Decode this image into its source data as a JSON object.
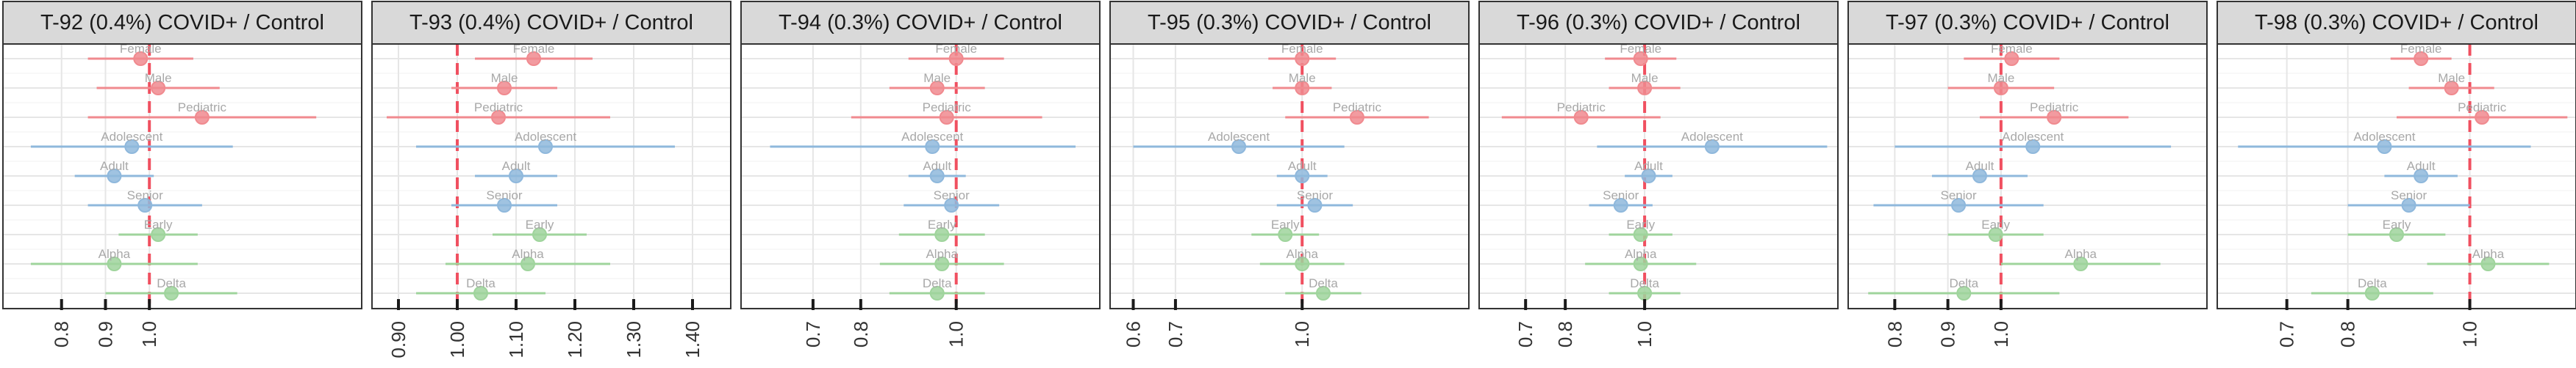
{
  "colors": {
    "sex": "#f08a8f",
    "age": "#8fb8dc",
    "variant": "#9fd49c",
    "reference": "#f05060",
    "strip_fill": "#d9d9d9",
    "grid": "#e6e6e6",
    "point_label": "#a8a8a8",
    "axis_text": "#333333"
  },
  "chart_data": [
    {
      "type": "forest",
      "title": "T-92 (0.4%) COVID+ / Control",
      "ticks": [
        "0.8",
        "0.9",
        "1.0"
      ],
      "tick_values": [
        0.8,
        0.9,
        1.0
      ],
      "xlim": [
        0.7,
        1.45
      ],
      "reference": 1.0,
      "rows": [
        {
          "label": "Female",
          "group": "sex",
          "est": 0.98,
          "lo": 0.86,
          "hi": 1.1
        },
        {
          "label": "Male",
          "group": "sex",
          "est": 1.02,
          "lo": 0.88,
          "hi": 1.16
        },
        {
          "label": "Pediatric",
          "group": "sex",
          "est": 1.12,
          "lo": 0.86,
          "hi": 1.38
        },
        {
          "label": "Adolescent",
          "group": "age",
          "est": 0.96,
          "lo": 0.73,
          "hi": 1.19
        },
        {
          "label": "Adult",
          "group": "age",
          "est": 0.92,
          "lo": 0.83,
          "hi": 1.01
        },
        {
          "label": "Senior",
          "group": "age",
          "est": 0.99,
          "lo": 0.86,
          "hi": 1.12
        },
        {
          "label": "Early",
          "group": "variant",
          "est": 1.02,
          "lo": 0.93,
          "hi": 1.11
        },
        {
          "label": "Alpha",
          "group": "variant",
          "est": 0.92,
          "lo": 0.73,
          "hi": 1.11
        },
        {
          "label": "Delta",
          "group": "variant",
          "est": 1.05,
          "lo": 0.9,
          "hi": 1.2
        }
      ]
    },
    {
      "type": "forest",
      "title": "T-93 (0.4%) COVID+ / Control",
      "ticks": [
        "0.90",
        "1.00",
        "1.10",
        "1.20",
        "1.30",
        "1.40"
      ],
      "tick_values": [
        0.9,
        1.0,
        1.1,
        1.2,
        1.3,
        1.4
      ],
      "xlim": [
        0.88,
        1.44
      ],
      "reference": 1.0,
      "rows": [
        {
          "label": "Female",
          "group": "sex",
          "est": 1.13,
          "lo": 1.03,
          "hi": 1.23
        },
        {
          "label": "Male",
          "group": "sex",
          "est": 1.08,
          "lo": 0.99,
          "hi": 1.17
        },
        {
          "label": "Pediatric",
          "group": "sex",
          "est": 1.07,
          "lo": 0.88,
          "hi": 1.26
        },
        {
          "label": "Adolescent",
          "group": "age",
          "est": 1.15,
          "lo": 0.93,
          "hi": 1.37
        },
        {
          "label": "Adult",
          "group": "age",
          "est": 1.1,
          "lo": 1.03,
          "hi": 1.17
        },
        {
          "label": "Senior",
          "group": "age",
          "est": 1.08,
          "lo": 0.99,
          "hi": 1.17
        },
        {
          "label": "Early",
          "group": "variant",
          "est": 1.14,
          "lo": 1.06,
          "hi": 1.22
        },
        {
          "label": "Alpha",
          "group": "variant",
          "est": 1.12,
          "lo": 0.98,
          "hi": 1.26
        },
        {
          "label": "Delta",
          "group": "variant",
          "est": 1.04,
          "lo": 0.93,
          "hi": 1.15
        }
      ]
    },
    {
      "type": "forest",
      "title": "T-94 (0.3%) COVID+ / Control",
      "ticks": [
        "0.7",
        "0.8",
        "1.0"
      ],
      "tick_values": [
        0.7,
        0.8,
        1.0
      ],
      "xlim": [
        0.58,
        1.27
      ],
      "reference": 1.0,
      "rows": [
        {
          "label": "Female",
          "group": "sex",
          "est": 1.0,
          "lo": 0.9,
          "hi": 1.1
        },
        {
          "label": "Male",
          "group": "sex",
          "est": 0.96,
          "lo": 0.86,
          "hi": 1.06
        },
        {
          "label": "Pediatric",
          "group": "sex",
          "est": 0.98,
          "lo": 0.78,
          "hi": 1.18
        },
        {
          "label": "Adolescent",
          "group": "age",
          "est": 0.95,
          "lo": 0.61,
          "hi": 1.25
        },
        {
          "label": "Adult",
          "group": "age",
          "est": 0.96,
          "lo": 0.9,
          "hi": 1.02
        },
        {
          "label": "Senior",
          "group": "age",
          "est": 0.99,
          "lo": 0.89,
          "hi": 1.09
        },
        {
          "label": "Early",
          "group": "variant",
          "est": 0.97,
          "lo": 0.88,
          "hi": 1.06
        },
        {
          "label": "Alpha",
          "group": "variant",
          "est": 0.97,
          "lo": 0.84,
          "hi": 1.1
        },
        {
          "label": "Delta",
          "group": "variant",
          "est": 0.96,
          "lo": 0.86,
          "hi": 1.06
        }
      ]
    },
    {
      "type": "forest",
      "title": "T-95 (0.3%) COVID+ / Control",
      "ticks": [
        "0.6",
        "0.7",
        "1.0"
      ],
      "tick_values": [
        0.6,
        0.7,
        1.0
      ],
      "xlim": [
        0.58,
        1.36
      ],
      "reference": 1.0,
      "rows": [
        {
          "label": "Female",
          "group": "sex",
          "est": 1.0,
          "lo": 0.92,
          "hi": 1.08
        },
        {
          "label": "Male",
          "group": "sex",
          "est": 1.0,
          "lo": 0.93,
          "hi": 1.07
        },
        {
          "label": "Pediatric",
          "group": "sex",
          "est": 1.13,
          "lo": 0.96,
          "hi": 1.3
        },
        {
          "label": "Adolescent",
          "group": "age",
          "est": 0.85,
          "lo": 0.6,
          "hi": 1.1
        },
        {
          "label": "Adult",
          "group": "age",
          "est": 1.0,
          "lo": 0.94,
          "hi": 1.06
        },
        {
          "label": "Senior",
          "group": "age",
          "est": 1.03,
          "lo": 0.94,
          "hi": 1.12
        },
        {
          "label": "Early",
          "group": "variant",
          "est": 0.96,
          "lo": 0.88,
          "hi": 1.04
        },
        {
          "label": "Alpha",
          "group": "variant",
          "est": 1.0,
          "lo": 0.9,
          "hi": 1.1
        },
        {
          "label": "Delta",
          "group": "variant",
          "est": 1.05,
          "lo": 0.96,
          "hi": 1.14
        }
      ]
    },
    {
      "type": "forest",
      "title": "T-96 (0.3%) COVID+ / Control",
      "ticks": [
        "0.7",
        "0.8",
        "1.0"
      ],
      "tick_values": [
        0.7,
        0.8,
        1.0
      ],
      "xlim": [
        0.62,
        1.45
      ],
      "reference": 1.0,
      "rows": [
        {
          "label": "Female",
          "group": "sex",
          "est": 0.99,
          "lo": 0.9,
          "hi": 1.08
        },
        {
          "label": "Male",
          "group": "sex",
          "est": 1.0,
          "lo": 0.91,
          "hi": 1.09
        },
        {
          "label": "Pediatric",
          "group": "sex",
          "est": 0.84,
          "lo": 0.64,
          "hi": 1.04
        },
        {
          "label": "Adolescent",
          "group": "age",
          "est": 1.17,
          "lo": 0.88,
          "hi": 1.46
        },
        {
          "label": "Adult",
          "group": "age",
          "est": 1.01,
          "lo": 0.95,
          "hi": 1.07
        },
        {
          "label": "Senior",
          "group": "age",
          "est": 0.94,
          "lo": 0.86,
          "hi": 1.02
        },
        {
          "label": "Early",
          "group": "variant",
          "est": 0.99,
          "lo": 0.91,
          "hi": 1.07
        },
        {
          "label": "Alpha",
          "group": "variant",
          "est": 0.99,
          "lo": 0.85,
          "hi": 1.13
        },
        {
          "label": "Delta",
          "group": "variant",
          "est": 1.0,
          "lo": 0.91,
          "hi": 1.09
        }
      ]
    },
    {
      "type": "forest",
      "title": "T-97 (0.3%) COVID+ / Control",
      "ticks": [
        "0.8",
        "0.9",
        "1.0"
      ],
      "tick_values": [
        0.8,
        0.9,
        1.0
      ],
      "xlim": [
        0.74,
        1.36
      ],
      "reference": 1.0,
      "rows": [
        {
          "label": "Female",
          "group": "sex",
          "est": 1.02,
          "lo": 0.93,
          "hi": 1.11
        },
        {
          "label": "Male",
          "group": "sex",
          "est": 1.0,
          "lo": 0.9,
          "hi": 1.1
        },
        {
          "label": "Pediatric",
          "group": "sex",
          "est": 1.1,
          "lo": 0.96,
          "hi": 1.24
        },
        {
          "label": "Adolescent",
          "group": "age",
          "est": 1.06,
          "lo": 0.8,
          "hi": 1.32
        },
        {
          "label": "Adult",
          "group": "age",
          "est": 0.96,
          "lo": 0.87,
          "hi": 1.05
        },
        {
          "label": "Senior",
          "group": "age",
          "est": 0.92,
          "lo": 0.76,
          "hi": 1.08
        },
        {
          "label": "Early",
          "group": "variant",
          "est": 0.99,
          "lo": 0.9,
          "hi": 1.08
        },
        {
          "label": "Alpha",
          "group": "variant",
          "est": 1.15,
          "lo": 1.0,
          "hi": 1.3
        },
        {
          "label": "Delta",
          "group": "variant",
          "est": 0.93,
          "lo": 0.75,
          "hi": 1.11
        }
      ]
    },
    {
      "type": "forest",
      "title": "T-98 (0.3%) COVID+ / Control",
      "ticks": [
        "0.7",
        "0.8",
        "1.0"
      ],
      "tick_values": [
        0.7,
        0.8,
        1.0
      ],
      "xlim": [
        0.61,
        1.15
      ],
      "reference": 1.0,
      "rows": [
        {
          "label": "Female",
          "group": "sex",
          "est": 0.92,
          "lo": 0.87,
          "hi": 0.97
        },
        {
          "label": "Male",
          "group": "sex",
          "est": 0.97,
          "lo": 0.9,
          "hi": 1.04
        },
        {
          "label": "Pediatric",
          "group": "sex",
          "est": 1.02,
          "lo": 0.88,
          "hi": 1.16
        },
        {
          "label": "Adolescent",
          "group": "age",
          "est": 0.86,
          "lo": 0.62,
          "hi": 1.1
        },
        {
          "label": "Adult",
          "group": "age",
          "est": 0.92,
          "lo": 0.86,
          "hi": 0.98
        },
        {
          "label": "Senior",
          "group": "age",
          "est": 0.9,
          "lo": 0.8,
          "hi": 1.0
        },
        {
          "label": "Early",
          "group": "variant",
          "est": 0.88,
          "lo": 0.8,
          "hi": 0.96
        },
        {
          "label": "Alpha",
          "group": "variant",
          "est": 1.03,
          "lo": 0.93,
          "hi": 1.13
        },
        {
          "label": "Delta",
          "group": "variant",
          "est": 0.84,
          "lo": 0.74,
          "hi": 0.94
        }
      ]
    }
  ]
}
